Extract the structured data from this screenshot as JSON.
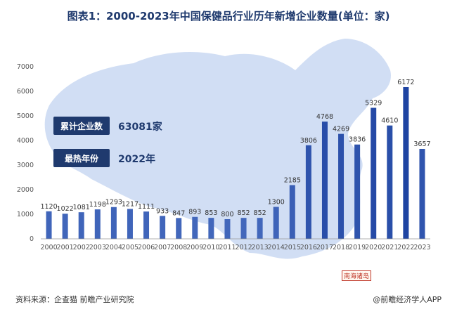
{
  "chart_data": {
    "type": "bar",
    "title": "图表1：2000-2023年中国保健品行业历年新增企业数量(单位：家)",
    "categories": [
      "2000",
      "2001",
      "2002",
      "2003",
      "2004",
      "2005",
      "2006",
      "2007",
      "2008",
      "2009",
      "2010",
      "2011",
      "2012",
      "2013",
      "2014",
      "2015",
      "2016",
      "2017",
      "2018",
      "2019",
      "2020",
      "2021",
      "2022",
      "2023"
    ],
    "values": [
      1120,
      1022,
      1081,
      1198,
      1293,
      1217,
      1111,
      933,
      847,
      893,
      853,
      800,
      852,
      852,
      1300,
      2185,
      3806,
      4768,
      4269,
      3836,
      5329,
      4610,
      6172,
      3657
    ],
    "ylim": [
      0,
      7000
    ],
    "yticks": [
      0,
      1000,
      2000,
      3000,
      4000,
      5000,
      6000,
      7000
    ],
    "grid": false,
    "legend": "none"
  },
  "stats": {
    "cumulative_label": "累计企业数",
    "cumulative_value": "63081家",
    "hottest_label": "最热年份",
    "hottest_value": "2022年"
  },
  "map_label": "南海诸岛",
  "footer": {
    "source": "资料来源：企查猫 前瞻产业研究院",
    "brand": "@前瞻经济学人APP"
  },
  "colors": {
    "bar_light": "#7fa4e8",
    "bar_dark": "#1a3f9e",
    "map": "#c9d8f2",
    "accent": "#1f3a6e"
  }
}
